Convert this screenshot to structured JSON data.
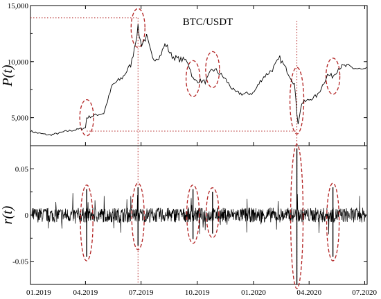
{
  "chart_data": [
    {
      "type": "line",
      "panel": "price",
      "title": "BTC/USDT",
      "ylabel": "P(t)",
      "xlabel": "",
      "x_ticks": [
        "01.2019",
        "04.2019",
        "07.2019",
        "10.2019",
        "01.2020",
        "04.2020",
        "07.2020"
      ],
      "y_ticks": [
        "5,000",
        "10,000",
        "15,000"
      ],
      "y_tick_values": [
        5000,
        10000,
        15000
      ],
      "ylim": [
        2500,
        15000
      ],
      "xlim": [
        "2019-01-01",
        "2020-07-05"
      ],
      "grid": false,
      "series": [
        {
          "x": [
            "2019-01-01",
            "2019-01-15",
            "2019-02-01",
            "2019-02-15",
            "2019-03-01",
            "2019-03-15",
            "2019-04-01",
            "2019-04-03",
            "2019-04-15",
            "2019-05-01",
            "2019-05-15",
            "2019-06-01",
            "2019-06-15",
            "2019-06-26",
            "2019-07-01",
            "2019-07-10",
            "2019-07-20",
            "2019-08-01",
            "2019-08-10",
            "2019-08-20",
            "2019-09-01",
            "2019-09-15",
            "2019-09-25",
            "2019-10-01",
            "2019-10-15",
            "2019-10-25",
            "2019-11-01",
            "2019-11-15",
            "2019-12-01",
            "2019-12-15",
            "2020-01-01",
            "2020-01-15",
            "2020-02-01",
            "2020-02-13",
            "2020-03-01",
            "2020-03-08",
            "2020-03-12",
            "2020-03-13",
            "2020-03-20",
            "2020-04-01",
            "2020-04-15",
            "2020-05-01",
            "2020-05-10",
            "2020-05-20",
            "2020-06-01",
            "2020-06-15",
            "2020-07-01",
            "2020-07-05"
          ],
          "y": [
            3800,
            3600,
            3450,
            3600,
            3800,
            3900,
            4100,
            5000,
            5200,
            5400,
            7900,
            8600,
            9800,
            13000,
            11500,
            12200,
            10200,
            10500,
            11600,
            10500,
            10200,
            10100,
            8300,
            8300,
            8200,
            9300,
            9200,
            8500,
            7300,
            7100,
            7200,
            8500,
            9300,
            10300,
            8700,
            8000,
            5400,
            4200,
            6300,
            6600,
            7000,
            8800,
            8700,
            9500,
            9600,
            9400,
            9200,
            9300
          ]
        }
      ],
      "highlight_levels": [
        13900,
        3800
      ]
    },
    {
      "type": "line",
      "panel": "returns",
      "title": "",
      "ylabel": "r(t)",
      "xlabel": "",
      "x_ticks": [
        "01.2019",
        "04.2019",
        "07.2019",
        "10.2019",
        "01.2020",
        "04.2020",
        "07.2020"
      ],
      "y_ticks": [
        "-0.05",
        "0",
        "0.05"
      ],
      "y_tick_values": [
        -0.05,
        0,
        0.05
      ],
      "ylim": [
        -0.075,
        0.075
      ],
      "xlim": [
        "2019-01-01",
        "2020-07-05"
      ],
      "grid": false,
      "noise_amplitude": 0.008,
      "spikes": [
        {
          "x": "2019-04-03",
          "up": 0.028,
          "down": -0.045
        },
        {
          "x": "2019-06-26",
          "up": 0.03,
          "down": -0.033
        },
        {
          "x": "2019-09-24",
          "up": 0.028,
          "down": -0.026
        },
        {
          "x": "2019-10-26",
          "up": 0.025,
          "down": -0.02
        },
        {
          "x": "2020-03-12",
          "up": 0.072,
          "down": -0.075
        },
        {
          "x": "2020-05-10",
          "up": 0.03,
          "down": -0.045
        }
      ]
    }
  ],
  "highlight_dates": [
    "2019-04-03",
    "2019-06-26",
    "2019-09-24",
    "2019-10-26",
    "2020-03-12",
    "2020-05-10"
  ],
  "colors": {
    "series": "#000000",
    "highlight": "#b22222",
    "axis": "#000000"
  }
}
